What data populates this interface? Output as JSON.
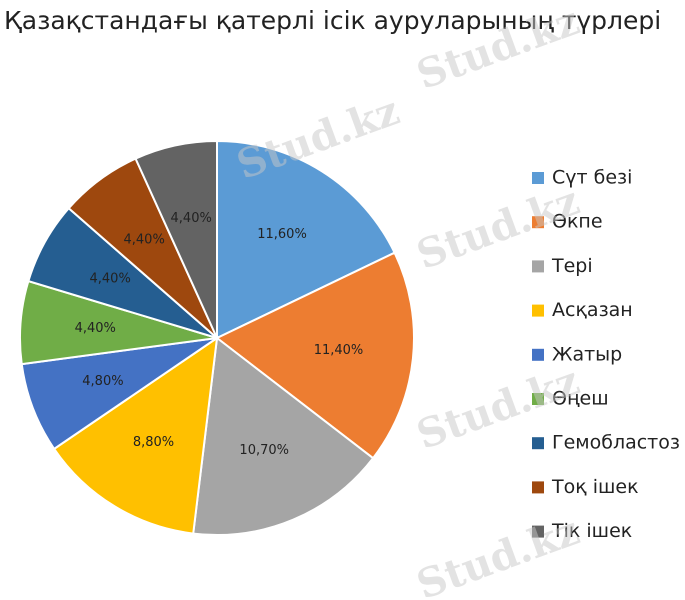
{
  "chart_data": {
    "type": "pie",
    "title": "Қазақстандағы қатерлі ісік ауруларының түрлері",
    "categories": [
      "Сүт безі",
      "Өкпе",
      "Тері",
      "Асқазан",
      "Жатыр",
      "Өңеш",
      "Гемобластоз",
      "Тоқ ішек",
      "Тік ішек"
    ],
    "values": [
      11.6,
      11.4,
      10.7,
      8.8,
      4.8,
      4.4,
      4.4,
      4.4,
      4.4
    ],
    "value_labels": [
      "11,60%",
      "11,40%",
      "10,70%",
      "8,80%",
      "4,80%",
      "4,40%",
      "4,40%",
      "4,40%",
      "4,40%"
    ],
    "colors": [
      "#5b9bd5",
      "#ed7d31",
      "#a5a5a5",
      "#ffc000",
      "#4472c4",
      "#70ad47",
      "#255e91",
      "#9e480e",
      "#636363"
    ],
    "legend": "right"
  },
  "watermark": "Stud.kz"
}
